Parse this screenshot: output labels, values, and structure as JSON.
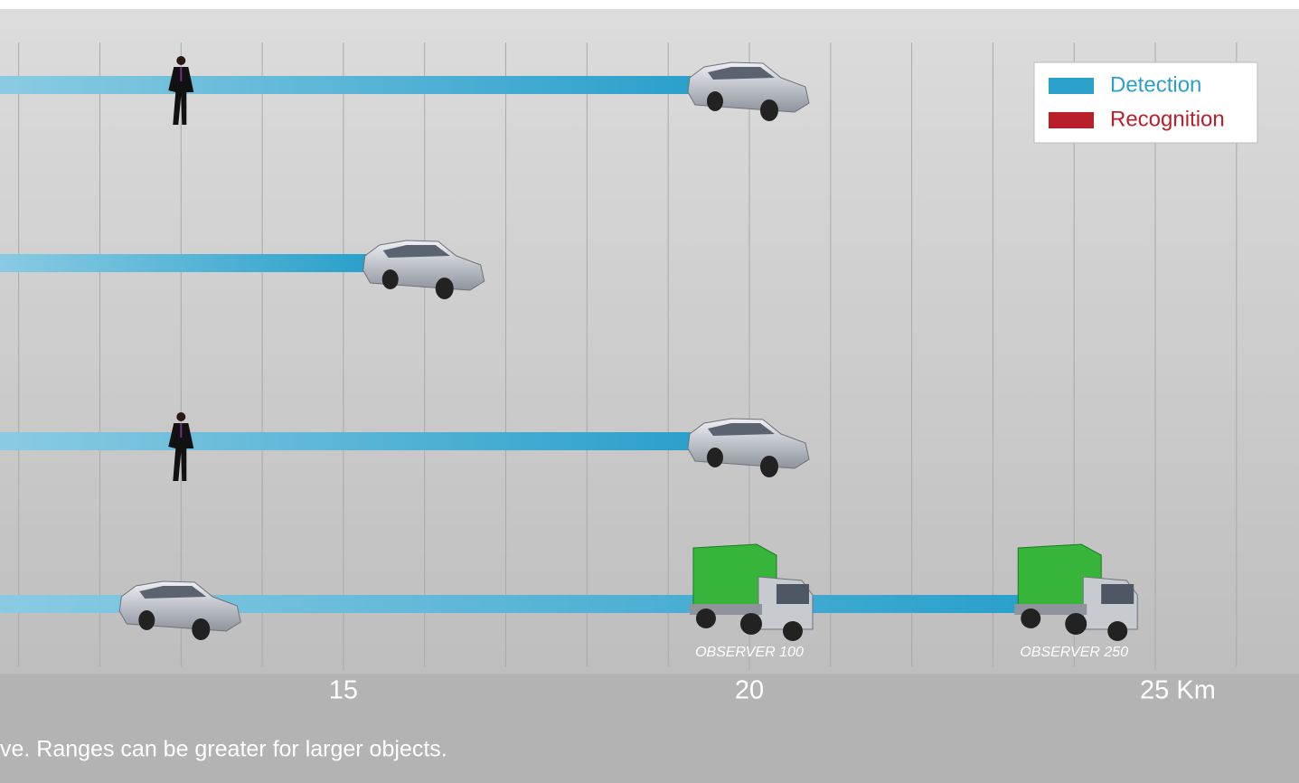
{
  "chart_data": {
    "type": "bar",
    "orientation": "horizontal",
    "categories": [
      null,
      null,
      null,
      null
    ],
    "series": [
      {
        "name": "Detection",
        "color": "#2aa0cb",
        "values": [
          19.3,
          15.3,
          19.3,
          23.4
        ]
      },
      {
        "name": "Recognition",
        "color": "#b81f2a",
        "values": [
          null,
          null,
          null,
          null
        ]
      }
    ],
    "rows": [
      {
        "person": 13,
        "car": 20
      },
      {
        "car": 16
      },
      {
        "person": 13,
        "car": 20
      },
      {
        "car": 13,
        "trucks": [
          20,
          24
        ],
        "truck_labels": [
          "OBSERVER  100",
          "OBSERVER  250"
        ]
      }
    ],
    "xlim": [
      10.77,
      26.77
    ],
    "xticks": [
      15,
      20,
      {
        "value": 25,
        "label": "25 Km"
      }
    ],
    "minor_xticks": [
      11,
      12,
      13,
      14,
      15,
      16,
      17,
      18,
      19,
      20,
      21,
      22,
      23,
      24,
      25,
      26
    ],
    "grid": true,
    "legend": "upper right",
    "footnote": "ve. Ranges can be greater for larger objects."
  }
}
